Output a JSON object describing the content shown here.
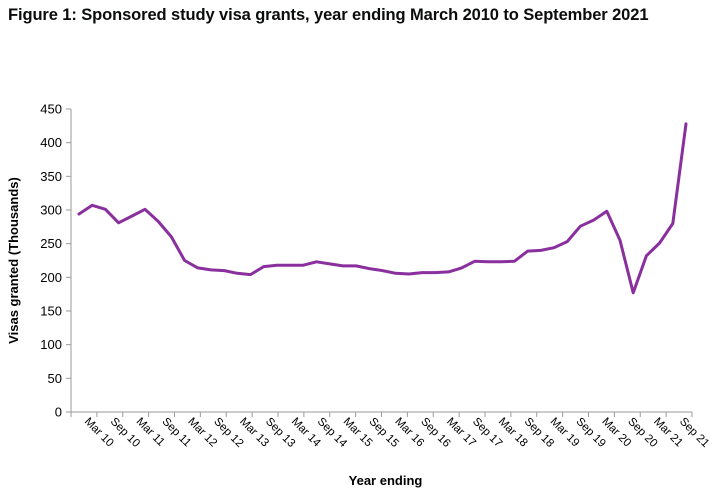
{
  "figure_title": "Figure 1: Sponsored study visa grants, year ending March 2010 to September 2021",
  "colors": {
    "line": "#8a2f9e",
    "axis": "#9a9a9a",
    "text": "#000000"
  },
  "chart_data": {
    "type": "line",
    "xlabel": "Year ending",
    "ylabel": "Visas granted (Thousands)",
    "ylim": [
      0,
      450
    ],
    "yticks": [
      0,
      50,
      100,
      150,
      200,
      250,
      300,
      350,
      400,
      450
    ],
    "grid": false,
    "legend": "none",
    "tick_labels": [
      "Mar 10",
      "Sep 10",
      "Mar 11",
      "Sep 11",
      "Mar 12",
      "Sep 12",
      "Mar 13",
      "Sep 13",
      "Mar 14",
      "Sep 14",
      "Mar 15",
      "Sep 15",
      "Mar 16",
      "Sep 16",
      "Mar 17",
      "Sep 17",
      "Mar 18",
      "Sep 18",
      "Mar 19",
      "Sep 19",
      "Mar 20",
      "Sep 20",
      "Mar 21",
      "Sep 21"
    ],
    "x": [
      "Mar 10",
      "Jun 10",
      "Sep 10",
      "Dec 10",
      "Mar 11",
      "Jun 11",
      "Sep 11",
      "Dec 11",
      "Mar 12",
      "Jun 12",
      "Sep 12",
      "Dec 12",
      "Mar 13",
      "Jun 13",
      "Sep 13",
      "Dec 13",
      "Mar 14",
      "Jun 14",
      "Sep 14",
      "Dec 14",
      "Mar 15",
      "Jun 15",
      "Sep 15",
      "Dec 15",
      "Mar 16",
      "Jun 16",
      "Sep 16",
      "Dec 16",
      "Mar 17",
      "Jun 17",
      "Sep 17",
      "Dec 17",
      "Mar 18",
      "Jun 18",
      "Sep 18",
      "Dec 18",
      "Mar 19",
      "Jun 19",
      "Sep 19",
      "Dec 19",
      "Mar 20",
      "Jun 20",
      "Sep 20",
      "Dec 20",
      "Mar 21",
      "Jun 21",
      "Sep 21"
    ],
    "series": [
      {
        "values": [
          294,
          307,
          301,
          281,
          291,
          301,
          283,
          260,
          225,
          214,
          211,
          210,
          206,
          204,
          216,
          218,
          218,
          218,
          223,
          220,
          217,
          217,
          213,
          210,
          206,
          205,
          207,
          207,
          208,
          214,
          224,
          223,
          223,
          224,
          239,
          240,
          244,
          253,
          276,
          285,
          298,
          255,
          177,
          232,
          251,
          280,
          428
        ]
      }
    ]
  }
}
